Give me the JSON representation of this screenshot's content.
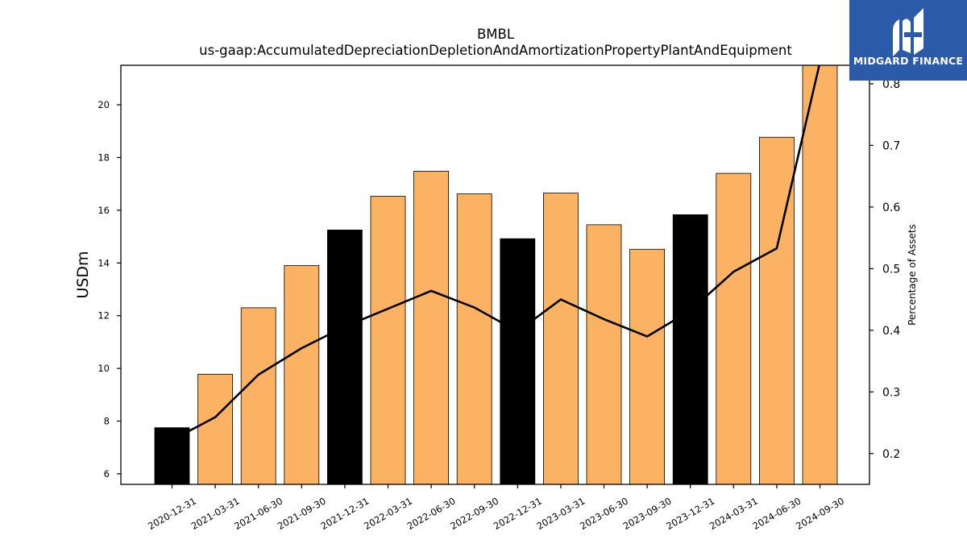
{
  "brand": {
    "name": "MIDGARD FINANCE",
    "background": "#2b5aa8",
    "icon": "midgard-logo-icon"
  },
  "chart_data": {
    "type": "bar",
    "title": "BMBL",
    "subtitle": "us-gaap:AccumulatedDepreciationDepletionAndAmortizationPropertyPlantAndEquipment",
    "ylabel": "USDm",
    "y2label": "Percentage of Assets",
    "ylim": [
      5.6,
      21.5
    ],
    "y2lim": [
      0.15,
      0.83
    ],
    "yticks": [
      6,
      8,
      10,
      12,
      14,
      16,
      18,
      20
    ],
    "y2ticks": [
      0.2,
      0.3,
      0.4,
      0.5,
      0.6,
      0.7,
      0.8
    ],
    "grid": false,
    "colors": {
      "annual": "#000000",
      "quarterly": "#fbb263",
      "line": "#000000"
    },
    "categories": [
      "2020-12-31",
      "2021-03-31",
      "2021-06-30",
      "2021-09-30",
      "2021-12-31",
      "2022-03-31",
      "2022-06-30",
      "2022-09-30",
      "2022-12-31",
      "2023-03-31",
      "2023-06-30",
      "2023-09-30",
      "2023-12-31",
      "2024-03-31",
      "2024-06-30",
      "2024-09-30"
    ],
    "series": [
      {
        "type": "bar",
        "values": [
          7.75,
          9.78,
          12.3,
          13.9,
          15.25,
          16.53,
          17.48,
          16.62,
          14.92,
          16.65,
          15.45,
          14.52,
          15.83,
          17.4,
          18.77,
          21.6
        ],
        "highlight": [
          true,
          false,
          false,
          false,
          true,
          false,
          false,
          false,
          true,
          false,
          false,
          false,
          true,
          false,
          false,
          false
        ]
      },
      {
        "type": "line",
        "axis": "right",
        "values": [
          0.222,
          0.259,
          0.328,
          0.371,
          0.406,
          0.435,
          0.464,
          0.437,
          0.398,
          0.45,
          0.418,
          0.39,
          0.432,
          0.495,
          0.533,
          0.835
        ]
      }
    ]
  }
}
